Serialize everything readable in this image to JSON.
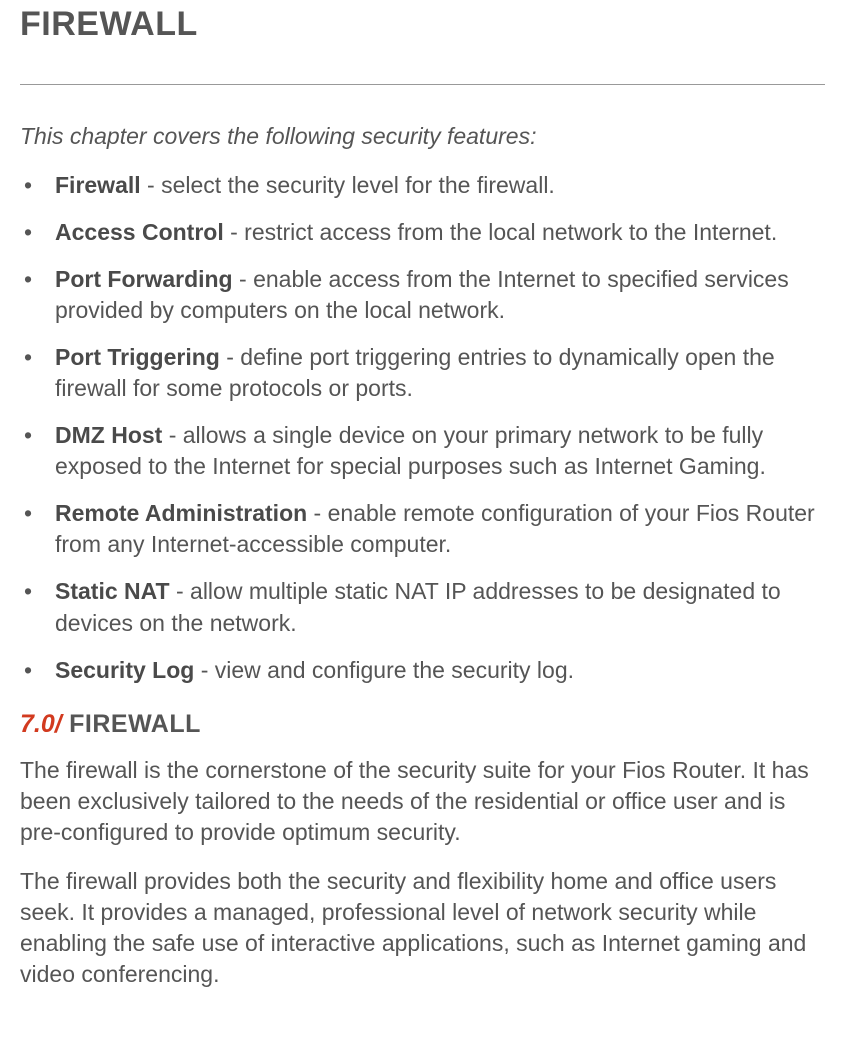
{
  "title": "FIREWALL",
  "intro": "This chapter covers the following security features:",
  "features": [
    {
      "term": "Firewall",
      "desc": " - select the security level for the firewall."
    },
    {
      "term": "Access Control",
      "desc": " - restrict access from the local network to the Internet."
    },
    {
      "term": "Port Forwarding",
      "desc": " - enable access from the Internet to specified services provided by computers on the local network."
    },
    {
      "term": "Port Triggering",
      "desc": " - define port triggering entries to dynamically open the firewall for some protocols or ports."
    },
    {
      "term": "DMZ Host",
      "desc": " - allows a single device on your primary network to be fully exposed to the Internet for special purposes such as Internet Gaming."
    },
    {
      "term": "Remote Administration",
      "desc": " - enable remote configuration of your Fios Router from any Internet-accessible computer."
    },
    {
      "term": "Static NAT",
      "desc": " - allow multiple static NAT IP addresses to be designated to devices on the network."
    },
    {
      "term": "Security Log",
      "desc": " - view and configure the security log."
    }
  ],
  "section": {
    "number": "7.0/",
    "label": " FIREWALL"
  },
  "paragraphs": [
    "The firewall is the cornerstone of the security suite for your Fios Router. It has been exclusively tailored to the needs of the residential or office user and is pre-configured to provide optimum security.",
    "The firewall provides both the security and flexibility home and office users seek. It provides a managed, professional level of network security while enabling the safe use of interactive applications, such as Internet gaming and video conferencing."
  ],
  "bullet_char": "•",
  "colors": {
    "text": "#555555",
    "accent": "#d23a1f",
    "divider": "#999999",
    "background": "#ffffff"
  },
  "fonts": {
    "title_size": 34,
    "body_size": 23,
    "section_size": 25
  }
}
